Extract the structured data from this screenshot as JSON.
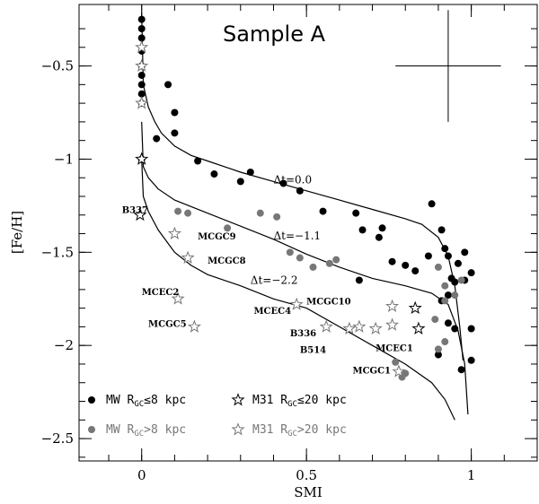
{
  "chart_data": {
    "type": "scatter",
    "title": "Sample A",
    "xlabel": "SMI",
    "ylabel": "[Fe/H]",
    "xlim": [
      -0.19,
      1.2
    ],
    "ylim": [
      -2.62,
      -0.17
    ],
    "x_ticks": [
      0,
      0.5,
      1
    ],
    "x_tick_labels": [
      "0",
      "0.5",
      "1"
    ],
    "y_ticks": [
      -0.5,
      -1,
      -1.5,
      -2,
      -2.5
    ],
    "y_tick_labels": [
      "−0.5",
      "−1",
      "−1.5",
      "−2",
      "−2.5"
    ],
    "colors": {
      "black": "#000000",
      "gray": "#777777"
    },
    "error_bar": {
      "x": 0.93,
      "y": -0.5,
      "xerr": 0.16,
      "yerr": 0.3
    },
    "series": [
      {
        "name": "MW R_GC≤8 kpc",
        "marker": "circle",
        "color": "#000000",
        "points": [
          [
            0,
            -0.25
          ],
          [
            0,
            -0.3
          ],
          [
            0,
            -0.35
          ],
          [
            0,
            -0.42
          ],
          [
            0,
            -0.5
          ],
          [
            0,
            -0.55
          ],
          [
            0,
            -0.6
          ],
          [
            0,
            -0.65
          ],
          [
            0,
            -0.7
          ],
          [
            0,
            -1.0
          ],
          [
            0.08,
            -0.6
          ],
          [
            0.1,
            -0.75
          ],
          [
            0.1,
            -0.86
          ],
          [
            0.045,
            -0.89
          ],
          [
            0.17,
            -1.01
          ],
          [
            0.22,
            -1.08
          ],
          [
            0.33,
            -1.07
          ],
          [
            0.3,
            -1.12
          ],
          [
            0.43,
            -1.13
          ],
          [
            0.48,
            -1.17
          ],
          [
            0.55,
            -1.28
          ],
          [
            0.65,
            -1.29
          ],
          [
            0.67,
            -1.38
          ],
          [
            0.72,
            -1.42
          ],
          [
            0.73,
            -1.37
          ],
          [
            0.76,
            -1.55
          ],
          [
            0.8,
            -1.57
          ],
          [
            0.83,
            -1.6
          ],
          [
            0.87,
            -1.52
          ],
          [
            0.88,
            -1.24
          ],
          [
            0.91,
            -1.38
          ],
          [
            0.92,
            -1.48
          ],
          [
            0.93,
            -1.52
          ],
          [
            0.94,
            -1.64
          ],
          [
            0.96,
            -1.56
          ],
          [
            0.98,
            -1.5
          ],
          [
            1.0,
            -1.61
          ],
          [
            0.98,
            -1.65
          ],
          [
            0.93,
            -1.73
          ],
          [
            0.95,
            -1.66
          ],
          [
            0.66,
            -1.65
          ],
          [
            0.91,
            -1.76
          ],
          [
            0.93,
            -1.88
          ],
          [
            0.95,
            -1.91
          ],
          [
            0.9,
            -2.05
          ],
          [
            0.97,
            -2.13
          ],
          [
            1.0,
            -1.91
          ],
          [
            1.0,
            -2.08
          ]
        ]
      },
      {
        "name": "MW R_GC>8 kpc",
        "marker": "circle",
        "color": "#777777",
        "points": [
          [
            0.11,
            -1.28
          ],
          [
            0.14,
            -1.29
          ],
          [
            0.26,
            -1.37
          ],
          [
            0.36,
            -1.29
          ],
          [
            0.41,
            -1.31
          ],
          [
            0.45,
            -1.5
          ],
          [
            0.48,
            -1.53
          ],
          [
            0.52,
            -1.58
          ],
          [
            0.57,
            -1.56
          ],
          [
            0.59,
            -1.54
          ],
          [
            0.9,
            -1.58
          ],
          [
            0.92,
            -1.68
          ],
          [
            0.95,
            -1.73
          ],
          [
            0.97,
            -1.65
          ],
          [
            0.92,
            -1.76
          ],
          [
            0.89,
            -1.86
          ],
          [
            0.92,
            -1.98
          ],
          [
            0.9,
            -2.02
          ],
          [
            0.77,
            -2.09
          ],
          [
            0.8,
            -2.15
          ],
          [
            0.79,
            -2.17
          ]
        ]
      },
      {
        "name": "M31 R_GC≤20 kpc",
        "marker": "star",
        "color": "#000000",
        "points": [
          [
            0,
            -1.0
          ],
          [
            -0.005,
            -1.3
          ],
          [
            0.83,
            -1.8
          ],
          [
            0.84,
            -1.91
          ]
        ]
      },
      {
        "name": "M31 R_GC>20 kpc",
        "marker": "star",
        "color": "#777777",
        "points": [
          [
            0,
            -0.4
          ],
          [
            0,
            -0.5
          ],
          [
            0,
            -0.7
          ],
          [
            0.1,
            -1.4
          ],
          [
            0.14,
            -1.53
          ],
          [
            0.11,
            -1.75
          ],
          [
            0.16,
            -1.9
          ],
          [
            0.47,
            -1.78
          ],
          [
            0.56,
            -1.9
          ],
          [
            0.63,
            -1.91
          ],
          [
            0.66,
            -1.9
          ],
          [
            0.71,
            -1.91
          ],
          [
            0.76,
            -1.89
          ],
          [
            0.76,
            -1.79
          ],
          [
            0.78,
            -2.14
          ]
        ]
      }
    ],
    "curves": [
      {
        "label": "Δt=0.0",
        "label_at": [
          0.4,
          -1.13
        ],
        "points": [
          [
            0,
            -0.21
          ],
          [
            0.005,
            -0.6
          ],
          [
            0.02,
            -0.72
          ],
          [
            0.04,
            -0.8
          ],
          [
            0.06,
            -0.86
          ],
          [
            0.1,
            -0.93
          ],
          [
            0.15,
            -0.98
          ],
          [
            0.2,
            -1.01
          ],
          [
            0.3,
            -1.07
          ],
          [
            0.4,
            -1.12
          ],
          [
            0.5,
            -1.17
          ],
          [
            0.6,
            -1.22
          ],
          [
            0.7,
            -1.27
          ],
          [
            0.8,
            -1.32
          ],
          [
            0.85,
            -1.35
          ],
          [
            0.9,
            -1.42
          ],
          [
            0.93,
            -1.52
          ],
          [
            0.95,
            -1.68
          ],
          [
            0.965,
            -1.9
          ],
          [
            0.975,
            -2.08
          ]
        ]
      },
      {
        "label": "Δt=−1.1",
        "label_at": [
          0.4,
          -1.43
        ],
        "points": [
          [
            0,
            -0.8
          ],
          [
            0.005,
            -1.04
          ],
          [
            0.02,
            -1.1
          ],
          [
            0.05,
            -1.16
          ],
          [
            0.1,
            -1.22
          ],
          [
            0.2,
            -1.29
          ],
          [
            0.3,
            -1.36
          ],
          [
            0.4,
            -1.43
          ],
          [
            0.5,
            -1.51
          ],
          [
            0.6,
            -1.58
          ],
          [
            0.7,
            -1.64
          ],
          [
            0.8,
            -1.68
          ],
          [
            0.88,
            -1.72
          ],
          [
            0.93,
            -1.78
          ],
          [
            0.96,
            -1.92
          ],
          [
            0.98,
            -2.1
          ],
          [
            0.99,
            -2.37
          ]
        ]
      },
      {
        "label": "Δt=−2.2",
        "label_at": [
          0.33,
          -1.67
        ],
        "points": [
          [
            0,
            -1.0
          ],
          [
            0.005,
            -1.2
          ],
          [
            0.02,
            -1.28
          ],
          [
            0.05,
            -1.38
          ],
          [
            0.1,
            -1.5
          ],
          [
            0.15,
            -1.57
          ],
          [
            0.2,
            -1.62
          ],
          [
            0.3,
            -1.68
          ],
          [
            0.4,
            -1.75
          ],
          [
            0.5,
            -1.8
          ],
          [
            0.6,
            -1.9
          ],
          [
            0.7,
            -2.0
          ],
          [
            0.8,
            -2.1
          ],
          [
            0.88,
            -2.2
          ],
          [
            0.92,
            -2.29
          ],
          [
            0.95,
            -2.4
          ]
        ]
      }
    ],
    "annotations": [
      {
        "text": "B337",
        "at": [
          -0.06,
          -1.29
        ]
      },
      {
        "text": "MCGC9",
        "at": [
          0.17,
          -1.43
        ]
      },
      {
        "text": "MCGC8",
        "at": [
          0.2,
          -1.56
        ]
      },
      {
        "text": "MCEC2",
        "at": [
          0.0,
          -1.73
        ]
      },
      {
        "text": "MCGC5",
        "at": [
          0.02,
          -1.9
        ]
      },
      {
        "text": "MCEC4",
        "at": [
          0.34,
          -1.83
        ]
      },
      {
        "text": "MCGC10",
        "at": [
          0.5,
          -1.78
        ]
      },
      {
        "text": "B336",
        "at": [
          0.45,
          -1.95
        ]
      },
      {
        "text": "B514",
        "at": [
          0.48,
          -2.04
        ]
      },
      {
        "text": "MCEC1",
        "at": [
          0.71,
          -2.03
        ]
      },
      {
        "text": "MCGC1",
        "at": [
          0.64,
          -2.15
        ]
      }
    ],
    "legend": {
      "placement": "bottom-left",
      "entries": [
        {
          "marker": "circle",
          "color": "#000000",
          "text": "MW R",
          "sub": "GC",
          "rest": "≤8 kpc"
        },
        {
          "marker": "star",
          "color": "#000000",
          "text": "M31 R",
          "sub": "GC",
          "rest": "≤20 kpc"
        },
        {
          "marker": "circle",
          "color": "#777777",
          "text": "MW R",
          "sub": "GC",
          "rest": ">8 kpc"
        },
        {
          "marker": "star",
          "color": "#777777",
          "text": "M31 R",
          "sub": "GC",
          "rest": ">20 kpc"
        }
      ]
    }
  }
}
